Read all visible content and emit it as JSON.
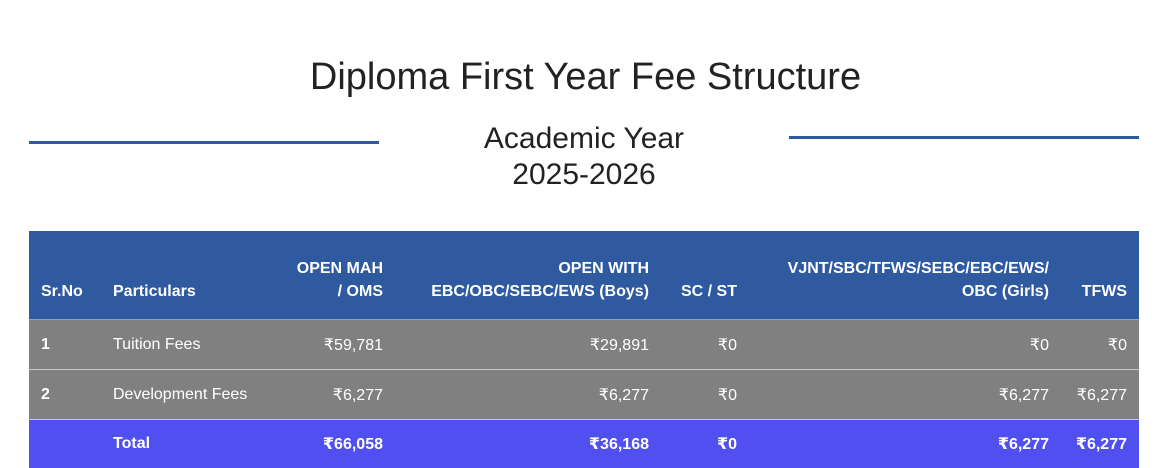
{
  "page": {
    "title": "Diploma First Year Fee Structure",
    "academic_year_label": "Academic Year",
    "academic_year": "2025-2026"
  },
  "colors": {
    "header_bg": "#2f5aa0",
    "row_bg": "#808080",
    "total_bg": "#5050f0",
    "divider_line": "#2f5aa0"
  },
  "table": {
    "headers": {
      "srno": "Sr.No",
      "particulars": "Particulars",
      "open_mah_1": "OPEN MAH",
      "open_mah_2": "/ OMS",
      "open_with_1": "OPEN WITH",
      "open_with_2": "EBC/OBC/SEBC/EWS (Boys)",
      "sc_st": "SC / ST",
      "vjnt_1": "VJNT/SBC/TFWS/SEBC/EBC/EWS/",
      "vjnt_2": "OBC (Girls)",
      "tfws": "TFWS"
    },
    "rows": [
      {
        "srno": "1",
        "particulars": "Tuition Fees",
        "open_mah": "₹59,781",
        "open_with": "₹29,891",
        "sc_st": "₹0",
        "vjnt": "₹0",
        "tfws": "₹0"
      },
      {
        "srno": "2",
        "particulars": "Development Fees",
        "open_mah": "₹6,277",
        "open_with": "₹6,277",
        "sc_st": "₹0",
        "vjnt": "₹6,277",
        "tfws": "₹6,277"
      }
    ],
    "total": {
      "label": "Total",
      "open_mah": "₹66,058",
      "open_with": "₹36,168",
      "sc_st": "₹0",
      "vjnt": "₹6,277",
      "tfws": "₹6,277"
    }
  }
}
